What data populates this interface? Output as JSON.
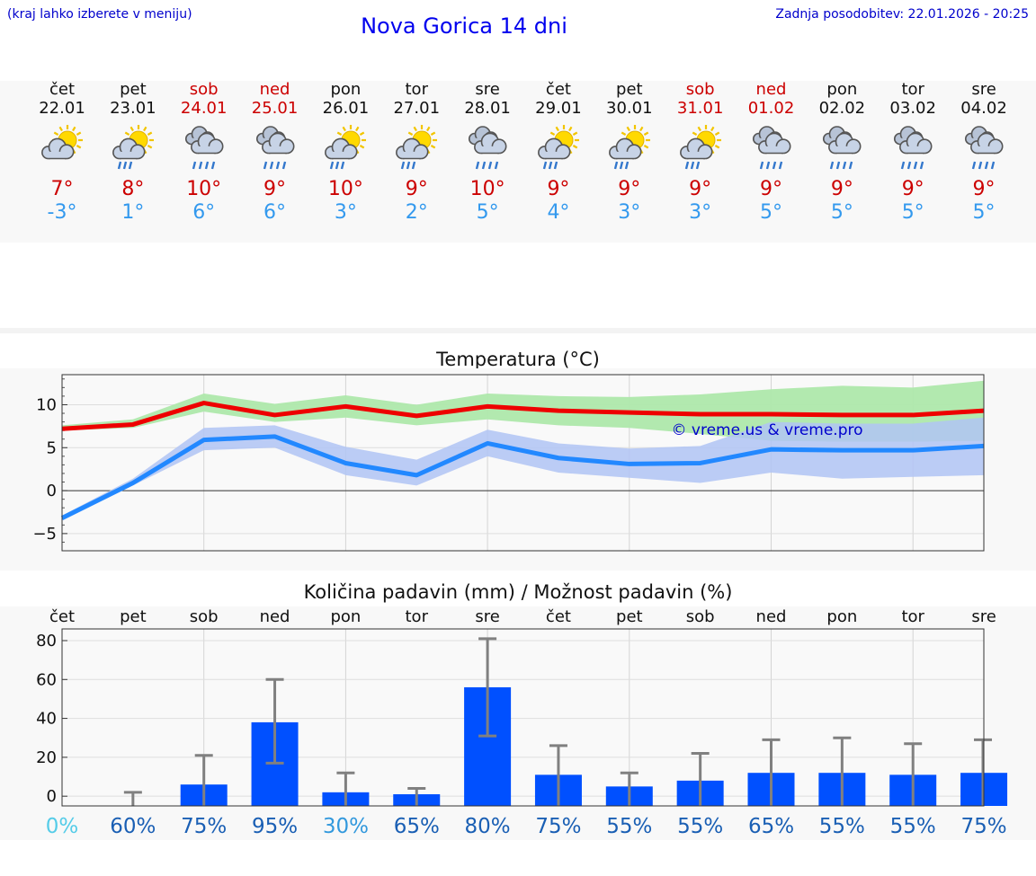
{
  "header": {
    "note": "(kraj lahko izberete v meniju)",
    "title": "Nova Gorica 14 dni",
    "updated": "Zadnja posodobitev: 22.01.2026 - 20:25"
  },
  "colors": {
    "max": "#cc0000",
    "min": "#3399ee",
    "bar": "#0050ff",
    "green_band": "#aee8ab",
    "blue_band": "#b0c4f5"
  },
  "days": [
    {
      "name": "čet",
      "date": "22.01",
      "weekend": false,
      "icon": "sun-cloud-icon",
      "max": "7°",
      "min": "-3°"
    },
    {
      "name": "pet",
      "date": "23.01",
      "weekend": false,
      "icon": "sun-cloud-rain-icon",
      "max": "8°",
      "min": "1°"
    },
    {
      "name": "sob",
      "date": "24.01",
      "weekend": true,
      "icon": "cloud-rain-icon",
      "max": "10°",
      "min": "6°"
    },
    {
      "name": "ned",
      "date": "25.01",
      "weekend": true,
      "icon": "cloud-rain-icon",
      "max": "9°",
      "min": "6°"
    },
    {
      "name": "pon",
      "date": "26.01",
      "weekend": false,
      "icon": "sun-cloud-rain-icon",
      "max": "10°",
      "min": "3°"
    },
    {
      "name": "tor",
      "date": "27.01",
      "weekend": false,
      "icon": "sun-cloud-rain-icon",
      "max": "9°",
      "min": "2°"
    },
    {
      "name": "sre",
      "date": "28.01",
      "weekend": false,
      "icon": "cloud-rain-icon",
      "max": "10°",
      "min": "5°"
    },
    {
      "name": "čet",
      "date": "29.01",
      "weekend": false,
      "icon": "sun-cloud-rain-icon",
      "max": "9°",
      "min": "4°"
    },
    {
      "name": "pet",
      "date": "30.01",
      "weekend": false,
      "icon": "sun-cloud-rain-icon",
      "max": "9°",
      "min": "3°"
    },
    {
      "name": "sob",
      "date": "31.01",
      "weekend": true,
      "icon": "sun-cloud-rain-icon",
      "max": "9°",
      "min": "3°"
    },
    {
      "name": "ned",
      "date": "01.02",
      "weekend": true,
      "icon": "cloud-rain-icon",
      "max": "9°",
      "min": "5°"
    },
    {
      "name": "pon",
      "date": "02.02",
      "weekend": false,
      "icon": "cloud-rain-icon",
      "max": "9°",
      "min": "5°"
    },
    {
      "name": "tor",
      "date": "03.02",
      "weekend": false,
      "icon": "cloud-rain-icon",
      "max": "9°",
      "min": "5°"
    },
    {
      "name": "sre",
      "date": "04.02",
      "weekend": false,
      "icon": "cloud-rain-icon",
      "max": "9°",
      "min": "5°"
    }
  ],
  "chart_data": [
    {
      "type": "line",
      "title": "Temperatura (°C)",
      "watermark": "© vreme.us & vreme.pro",
      "ylim": [
        -7,
        13.5
      ],
      "yticks": [
        -5,
        0,
        5,
        10
      ],
      "ytick_labels": [
        "−5",
        "0",
        "5",
        "10"
      ],
      "x": [
        0,
        1,
        2,
        3,
        4,
        5,
        6,
        7,
        8,
        9,
        10,
        11,
        12,
        13
      ],
      "series": [
        {
          "name": "max",
          "values": [
            7.2,
            7.7,
            10.2,
            8.8,
            9.8,
            8.7,
            9.8,
            9.3,
            9.1,
            8.9,
            8.9,
            8.8,
            8.8,
            9.3
          ],
          "band_low": [
            7.0,
            7.3,
            9.2,
            8.0,
            8.5,
            7.6,
            8.3,
            7.6,
            7.3,
            6.6,
            5.8,
            5.7,
            5.7,
            5.8
          ],
          "band_high": [
            7.6,
            8.3,
            11.3,
            10.1,
            11.1,
            10.0,
            11.3,
            11.0,
            10.9,
            11.2,
            11.8,
            12.2,
            12.0,
            12.8
          ]
        },
        {
          "name": "min",
          "values": [
            -3.2,
            0.9,
            5.9,
            6.3,
            3.2,
            1.8,
            5.5,
            3.8,
            3.1,
            3.2,
            4.8,
            4.7,
            4.7,
            5.2
          ],
          "band_low": [
            -3.5,
            0.6,
            4.7,
            5.0,
            1.8,
            0.6,
            4.0,
            2.1,
            1.5,
            0.9,
            2.1,
            1.4,
            1.6,
            1.8
          ],
          "band_high": [
            -2.9,
            1.4,
            7.3,
            7.6,
            5.1,
            3.6,
            7.1,
            5.5,
            4.9,
            5.2,
            8.0,
            7.8,
            7.8,
            8.5
          ]
        }
      ]
    },
    {
      "type": "bar",
      "title": "Količina padavin (mm) / Možnost padavin (%)",
      "categories": [
        "čet",
        "pet",
        "sob",
        "ned",
        "pon",
        "tor",
        "sre",
        "čet",
        "pet",
        "sob",
        "ned",
        "pon",
        "tor",
        "sre"
      ],
      "values": [
        0,
        0,
        6,
        38,
        2,
        1,
        56,
        11,
        5,
        8,
        12,
        12,
        11,
        12
      ],
      "error_low": [
        0,
        0,
        0,
        17,
        0,
        0,
        31,
        0,
        0,
        0,
        0,
        0,
        0,
        0
      ],
      "error_high": [
        0,
        2,
        21,
        60,
        12,
        4,
        81,
        26,
        12,
        22,
        29,
        30,
        27,
        29
      ],
      "probability": [
        "0%",
        "60%",
        "75%",
        "95%",
        "30%",
        "65%",
        "80%",
        "75%",
        "55%",
        "55%",
        "65%",
        "55%",
        "55%",
        "75%"
      ],
      "ylim": [
        -5,
        86
      ],
      "yticks": [
        0,
        20,
        40,
        60,
        80
      ],
      "ytick_labels": [
        "0",
        "20",
        "40",
        "60",
        "80"
      ]
    }
  ]
}
